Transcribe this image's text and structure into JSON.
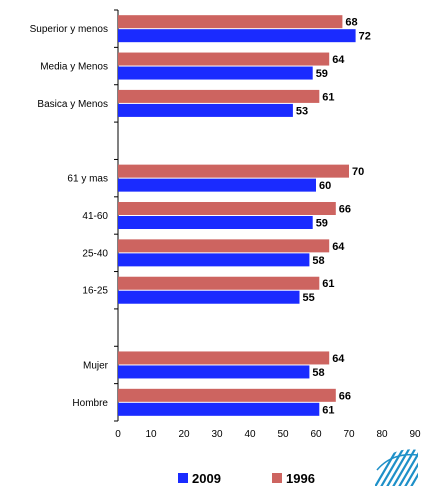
{
  "chart_data": {
    "type": "bar",
    "orientation": "horizontal",
    "categories": [
      "Superior y menos",
      "Media y Menos",
      "Basica y Menos",
      "",
      "61 y mas",
      "41-60",
      "25-40",
      "16-25",
      "",
      "Mujer",
      "Hombre"
    ],
    "series": [
      {
        "name": "1996",
        "color": "#cd6460",
        "values": [
          68,
          64,
          61,
          null,
          70,
          66,
          64,
          61,
          null,
          64,
          66
        ]
      },
      {
        "name": "2009",
        "color": "#1a2bff",
        "values": [
          72,
          59,
          53,
          null,
          60,
          59,
          58,
          55,
          null,
          58,
          61
        ]
      }
    ],
    "xlim": [
      0,
      90
    ],
    "xticks": [
      0,
      10,
      20,
      30,
      40,
      50,
      60,
      70,
      80,
      90
    ],
    "grid": false,
    "legend": {
      "placement": "bottom",
      "order": [
        "2009",
        "1996"
      ]
    },
    "logo_icon": "striped-wave-logo-icon"
  }
}
